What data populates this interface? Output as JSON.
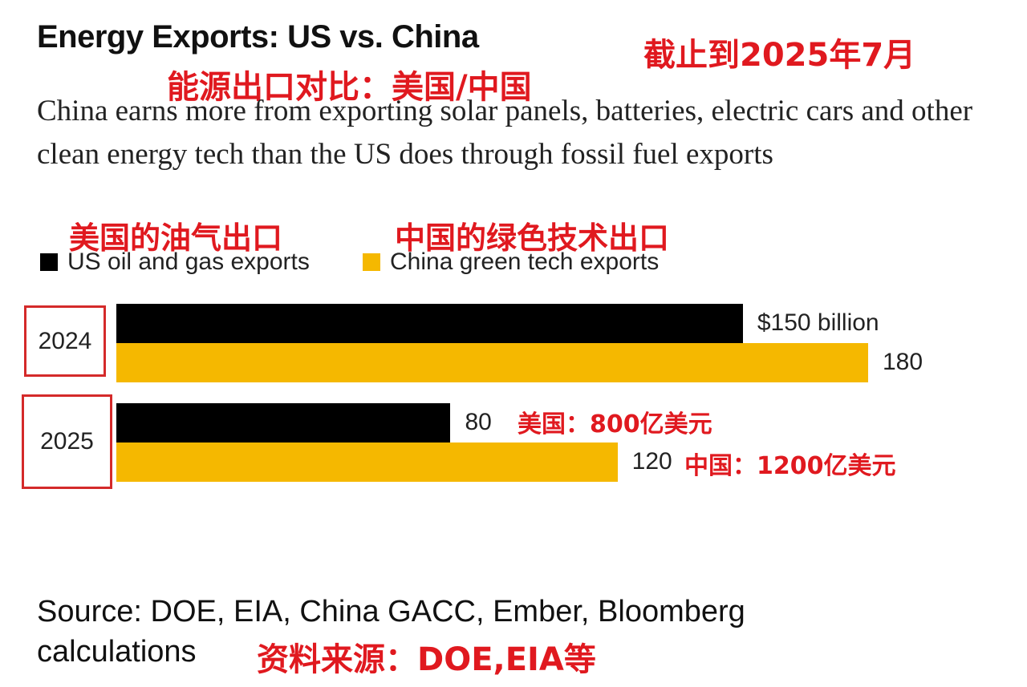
{
  "header": {
    "title": "Energy Exports: US vs. China",
    "date_note_cn": "截止到2025年7月",
    "title_cn": "能源出口对比：美国/中国",
    "subtitle": "China earns more from exporting solar panels, batteries, electric cars and other clean energy tech than the US does through fossil fuel exports"
  },
  "legend": {
    "us_cn": "美国的油气出口",
    "china_cn": "中国的绿色技术出口",
    "us_label": "US oil and gas exports",
    "china_label": "China green tech exports"
  },
  "annotations": {
    "us_2025_cn": "美国：800亿美元",
    "china_2025_cn": "中国：1200亿美元"
  },
  "footer": {
    "source_line1": "Source: DOE, EIA, China GACC, Ember, Bloomberg",
    "source_line2": "calculations",
    "source_cn": "资料来源：DOE,EIA等"
  },
  "colors": {
    "us": "#000000",
    "china": "#f5b800",
    "annotation": "#e0191f"
  },
  "chart_data": {
    "type": "bar",
    "orientation": "horizontal",
    "unit": "billion USD",
    "categories": [
      "2024",
      "2025"
    ],
    "series": [
      {
        "name": "US oil and gas exports",
        "values": [
          150,
          80
        ],
        "labels": [
          "$150 billion",
          "80"
        ]
      },
      {
        "name": "China green tech exports",
        "values": [
          180,
          120
        ],
        "labels": [
          "180",
          "120"
        ]
      }
    ],
    "xlim": [
      0,
      180
    ],
    "grid": false,
    "legend": "top-left"
  }
}
